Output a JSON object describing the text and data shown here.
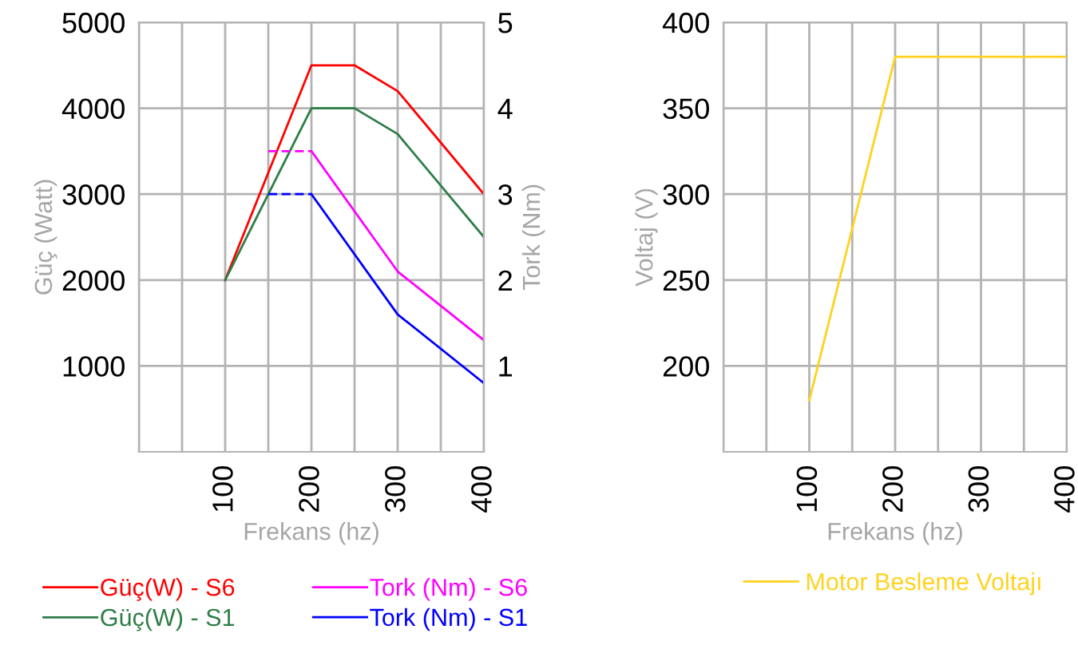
{
  "chart_data": [
    {
      "type": "line",
      "xlabel": "Frekans (hz)",
      "ylabel": "Güç (Watt)",
      "y2label": "Tork (Nm)",
      "xlim": [
        0,
        400
      ],
      "xticks": [
        {
          "value": 0,
          "label": null
        },
        {
          "value": 50,
          "label": null
        },
        100,
        {
          "value": 150,
          "label": null
        },
        200,
        {
          "value": 250,
          "label": null
        },
        300,
        {
          "value": 350,
          "label": null
        },
        400
      ],
      "ylim": [
        0,
        5000
      ],
      "yticks": [
        1000,
        2000,
        3000,
        4000,
        5000
      ],
      "y2lim": [
        0,
        5
      ],
      "y2ticks": [
        1,
        2,
        3,
        4,
        5
      ],
      "grid": true,
      "legend": "bottom",
      "line_style": "solid",
      "marker": "none",
      "series": [
        {
          "name": "Güç(W) - S6",
          "color": "#ff0000",
          "x": [
            100,
            200,
            250,
            300,
            400
          ],
          "values": [
            2000,
            4500,
            4500,
            4200,
            3000
          ]
        },
        {
          "name": "Güç(W) - S1",
          "color": "#2e7d46",
          "x": [
            100,
            200,
            250,
            300,
            400
          ],
          "values": [
            2000,
            4000,
            4000,
            3700,
            2500
          ]
        },
        {
          "name": "Tork (Nm) - S6",
          "color": "#ff00ff",
          "axis": "y2",
          "x": [
            200,
            300,
            400
          ],
          "values": [
            3.5,
            2.1,
            1.3
          ]
        },
        {
          "name": "Tork (Nm) - S1",
          "color": "#0000ff",
          "axis": "y2",
          "x": [
            200,
            300,
            400
          ],
          "values": [
            3,
            1.6,
            0.8
          ]
        },
        {
          "color": "#ff00ff",
          "axis": "y2",
          "line_style": "dashed",
          "x": [
            150,
            200
          ],
          "values": [
            3.5,
            3.5
          ]
        },
        {
          "color": "#0000ff",
          "axis": "y2",
          "line_style": "dashed",
          "x": [
            150,
            200
          ],
          "values": [
            3,
            3
          ]
        }
      ]
    },
    {
      "type": "line",
      "xlabel": "Frekans (hz)",
      "ylabel": "Voltaj (V)",
      "xlim": [
        0,
        400
      ],
      "xticks": [
        {
          "value": 0,
          "label": null
        },
        {
          "value": 50,
          "label": null
        },
        100,
        {
          "value": 150,
          "label": null
        },
        200,
        {
          "value": 250,
          "label": null
        },
        300,
        {
          "value": 350,
          "label": null
        },
        400
      ],
      "ylim": [
        150,
        400
      ],
      "yticks": [
        200,
        250,
        300,
        350,
        400
      ],
      "grid": true,
      "legend": "bottom",
      "line_style": "solid",
      "marker": "none",
      "series": [
        {
          "name": "Motor Besleme Voltajı",
          "color": "#ffd21f",
          "x": [
            100,
            200,
            400
          ],
          "values": [
            180,
            380,
            380
          ]
        }
      ]
    }
  ]
}
